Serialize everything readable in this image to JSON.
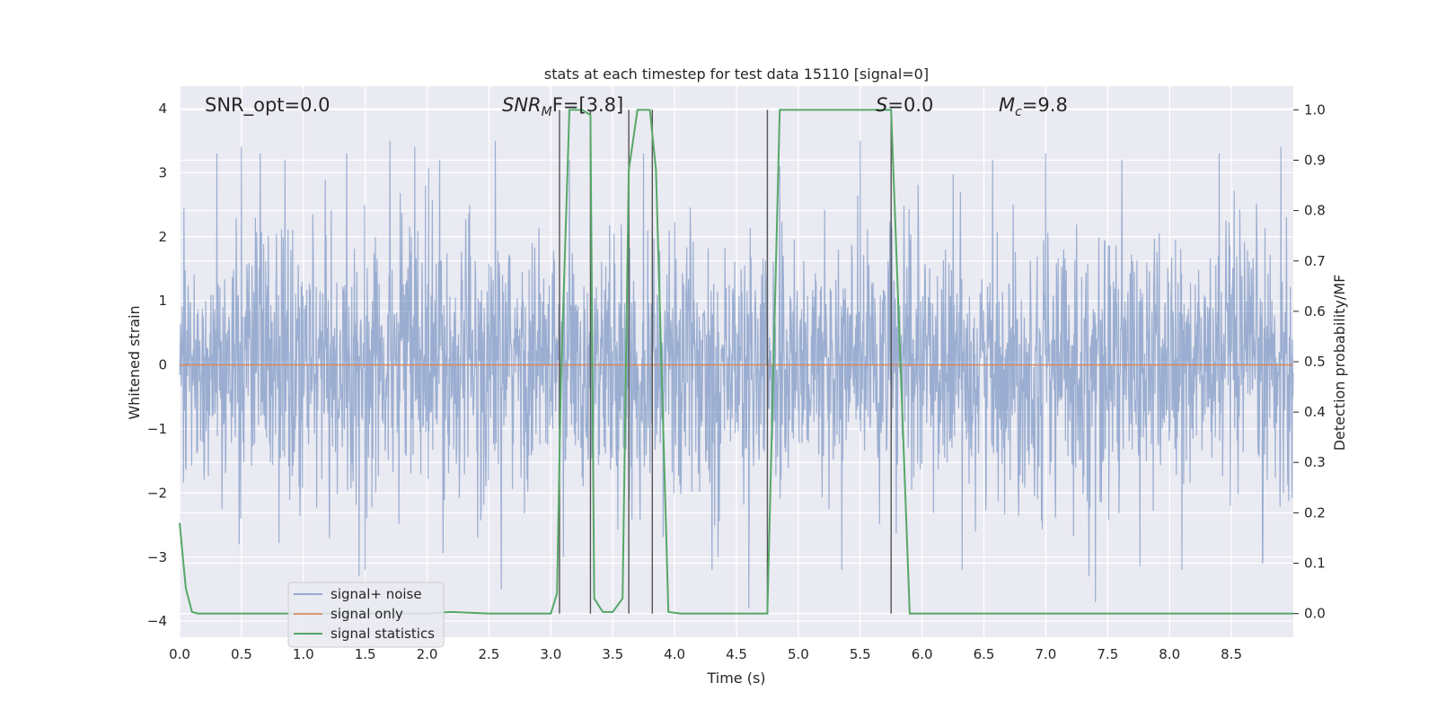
{
  "chart_data": {
    "type": "line",
    "title": "stats at each timestep for test data 15110 [signal=0]",
    "xlabel": "Time (s)",
    "ylabel": "Whitened strain",
    "y2label": "Detection probability/MF",
    "xlim": [
      0.0,
      9.0
    ],
    "ylim": [
      -4.25,
      4.35
    ],
    "y2lim": [
      -0.047,
      1.047
    ],
    "grid": true,
    "legend_position": "lower-left",
    "background": "#eaeaf2",
    "x_ticks": [
      "0.0",
      "0.5",
      "1.0",
      "1.5",
      "2.0",
      "2.5",
      "3.0",
      "3.5",
      "4.0",
      "4.5",
      "5.0",
      "5.5",
      "6.0",
      "6.5",
      "7.0",
      "7.5",
      "8.0",
      "8.5"
    ],
    "y_ticks": [
      "4",
      "3",
      "2",
      "1",
      "0",
      "−1",
      "−2",
      "−3",
      "−4"
    ],
    "y2_ticks": [
      "1.0",
      "0.9",
      "0.8",
      "0.7",
      "0.6",
      "0.5",
      "0.4",
      "0.3",
      "0.2",
      "0.1",
      "0.0"
    ],
    "annotations": {
      "snr_opt": "SNR_opt=0.0",
      "snr_mf_main": "SNR",
      "snr_mf_sub": "M",
      "snr_mf_rest": "F=[3.8]",
      "s_main": "S",
      "s_rest": "=0.0",
      "mc_main": "M",
      "mc_sub": "c",
      "mc_rest": "=9.8"
    },
    "series": [
      {
        "name": "signal+ noise",
        "color": "#4c72b0",
        "axis": "left",
        "description_amplitude": "whitened noise roughly within [-3.6, 3.6]",
        "dense_band": [
          -1.5,
          1.7
        ],
        "peaks_x": [
          0.3,
          0.5,
          0.65,
          0.85,
          1.35,
          1.7,
          1.9,
          2.1,
          2.55,
          3.1,
          3.75,
          4.85,
          5.5,
          5.75,
          7.0,
          8.4,
          8.9
        ],
        "peaks_y": [
          3.3,
          3.4,
          3.3,
          3.2,
          3.3,
          3.5,
          3.4,
          3.2,
          3.5,
          2.6,
          3.3,
          3.1,
          3.5,
          3.6,
          3.3,
          3.3,
          3.4
        ],
        "troughs_x": [
          0.48,
          1.45,
          1.5,
          2.6,
          3.1,
          4.35,
          4.6,
          5.35,
          7.35,
          7.4,
          8.1,
          8.75
        ],
        "troughs_y": [
          -2.8,
          -3.3,
          -3.2,
          -3.5,
          -3.0,
          -3.0,
          -3.8,
          -3.2,
          -3.3,
          -3.7,
          -3.2,
          -3.1
        ]
      },
      {
        "name": "signal only",
        "color": "#dd8452",
        "axis": "left",
        "x": [
          0.0,
          9.0
        ],
        "y": [
          0.0,
          0.0
        ]
      },
      {
        "name": "signal statistics",
        "color": "#55a868",
        "axis": "right",
        "x": [
          0.0,
          0.05,
          0.1,
          0.15,
          0.2,
          0.3,
          0.5,
          1.0,
          1.5,
          2.0,
          2.2,
          2.3,
          2.5,
          3.0,
          3.05,
          3.08,
          3.15,
          3.25,
          3.32,
          3.35,
          3.42,
          3.5,
          3.58,
          3.63,
          3.7,
          3.8,
          3.85,
          3.95,
          4.05,
          4.5,
          4.75,
          4.85,
          5.0,
          5.5,
          5.75,
          5.9,
          6.5,
          7.0,
          7.5,
          8.0,
          8.5,
          9.0
        ],
        "y": [
          0.18,
          0.05,
          0.003,
          0.0,
          0.0,
          0.0,
          0.0,
          0.0,
          0.0,
          0.0,
          0.003,
          0.002,
          0.0,
          0.0,
          0.04,
          0.45,
          1.0,
          1.0,
          0.99,
          0.03,
          0.003,
          0.003,
          0.03,
          0.88,
          1.0,
          1.0,
          0.88,
          0.003,
          0.0,
          0.0,
          0.0,
          1.0,
          1.0,
          1.0,
          1.0,
          0.0,
          0.0,
          0.0,
          0.0,
          0.0,
          0.0,
          0.0
        ]
      }
    ],
    "vertical_markers_x": [
      3.07,
      3.32,
      3.63,
      3.82,
      4.75,
      5.75
    ]
  }
}
